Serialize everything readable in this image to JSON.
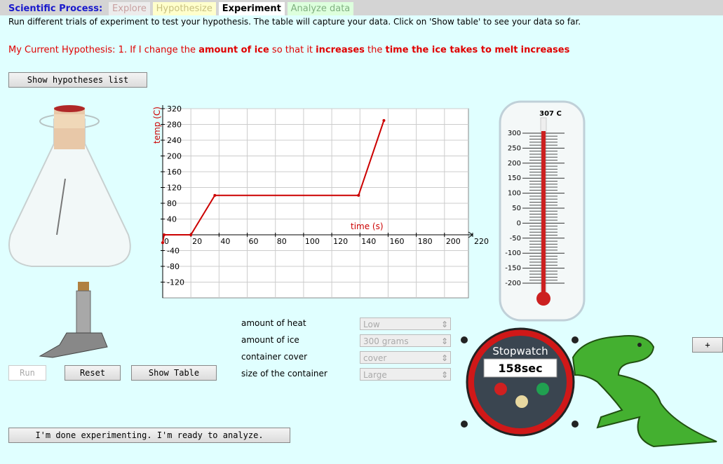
{
  "header": {
    "label": "Scientific Process:",
    "steps": [
      "Explore",
      "Hypothesize",
      "Experiment",
      "Analyze data"
    ]
  },
  "instructions": "Run different trials of experiment to test your hypothesis. The table will capture your data. Click on 'Show table' to see your data so far.",
  "hypothesis": {
    "prefix": "My Current Hypothesis: 1. If I change the",
    "variable": "amount of ice",
    "middle": "so that it",
    "direction": "increases",
    "the": "the",
    "outcome": "time the ice takes to melt",
    "outcome_direction": "increases"
  },
  "buttons": {
    "hypotheses": "Show hypotheses list",
    "run": "Run",
    "reset": "Reset",
    "table": "Show Table",
    "done": "I'm done experimenting. I'm ready to analyze.",
    "plus": "+"
  },
  "chart_data": {
    "type": "line",
    "ylabel": "temp (C)",
    "xlabel": "time (s)",
    "x": [
      0,
      1,
      20,
      37,
      139,
      157
    ],
    "series": [
      {
        "color": "#cc0000",
        "values": [
          -20,
          0,
          0,
          100,
          100,
          290
        ]
      }
    ],
    "xlim": [
      0,
      220
    ],
    "ylim": [
      -160,
      320
    ],
    "xticks": [
      0,
      20,
      40,
      60,
      80,
      100,
      120,
      140,
      160,
      180,
      200,
      220
    ],
    "yticks": [
      -120,
      -80,
      -40,
      40,
      80,
      120,
      160,
      200,
      240,
      280,
      320
    ],
    "grid": true
  },
  "thermometer": {
    "reading": {
      "value": 307,
      "label": "307 C"
    },
    "ticks": [
      300,
      250,
      200,
      150,
      100,
      50,
      0,
      -50,
      -100,
      -150,
      -200
    ],
    "lim": [
      -200,
      300
    ]
  },
  "controls": [
    {
      "label": "amount of heat",
      "value": "Low"
    },
    {
      "label": "amount of ice",
      "value": "300 grams"
    },
    {
      "label": "container cover",
      "value": "cover"
    },
    {
      "label": "size of the container",
      "value": "Large"
    }
  ],
  "stopwatch": {
    "title": "Stopwatch",
    "time": "158sec"
  }
}
